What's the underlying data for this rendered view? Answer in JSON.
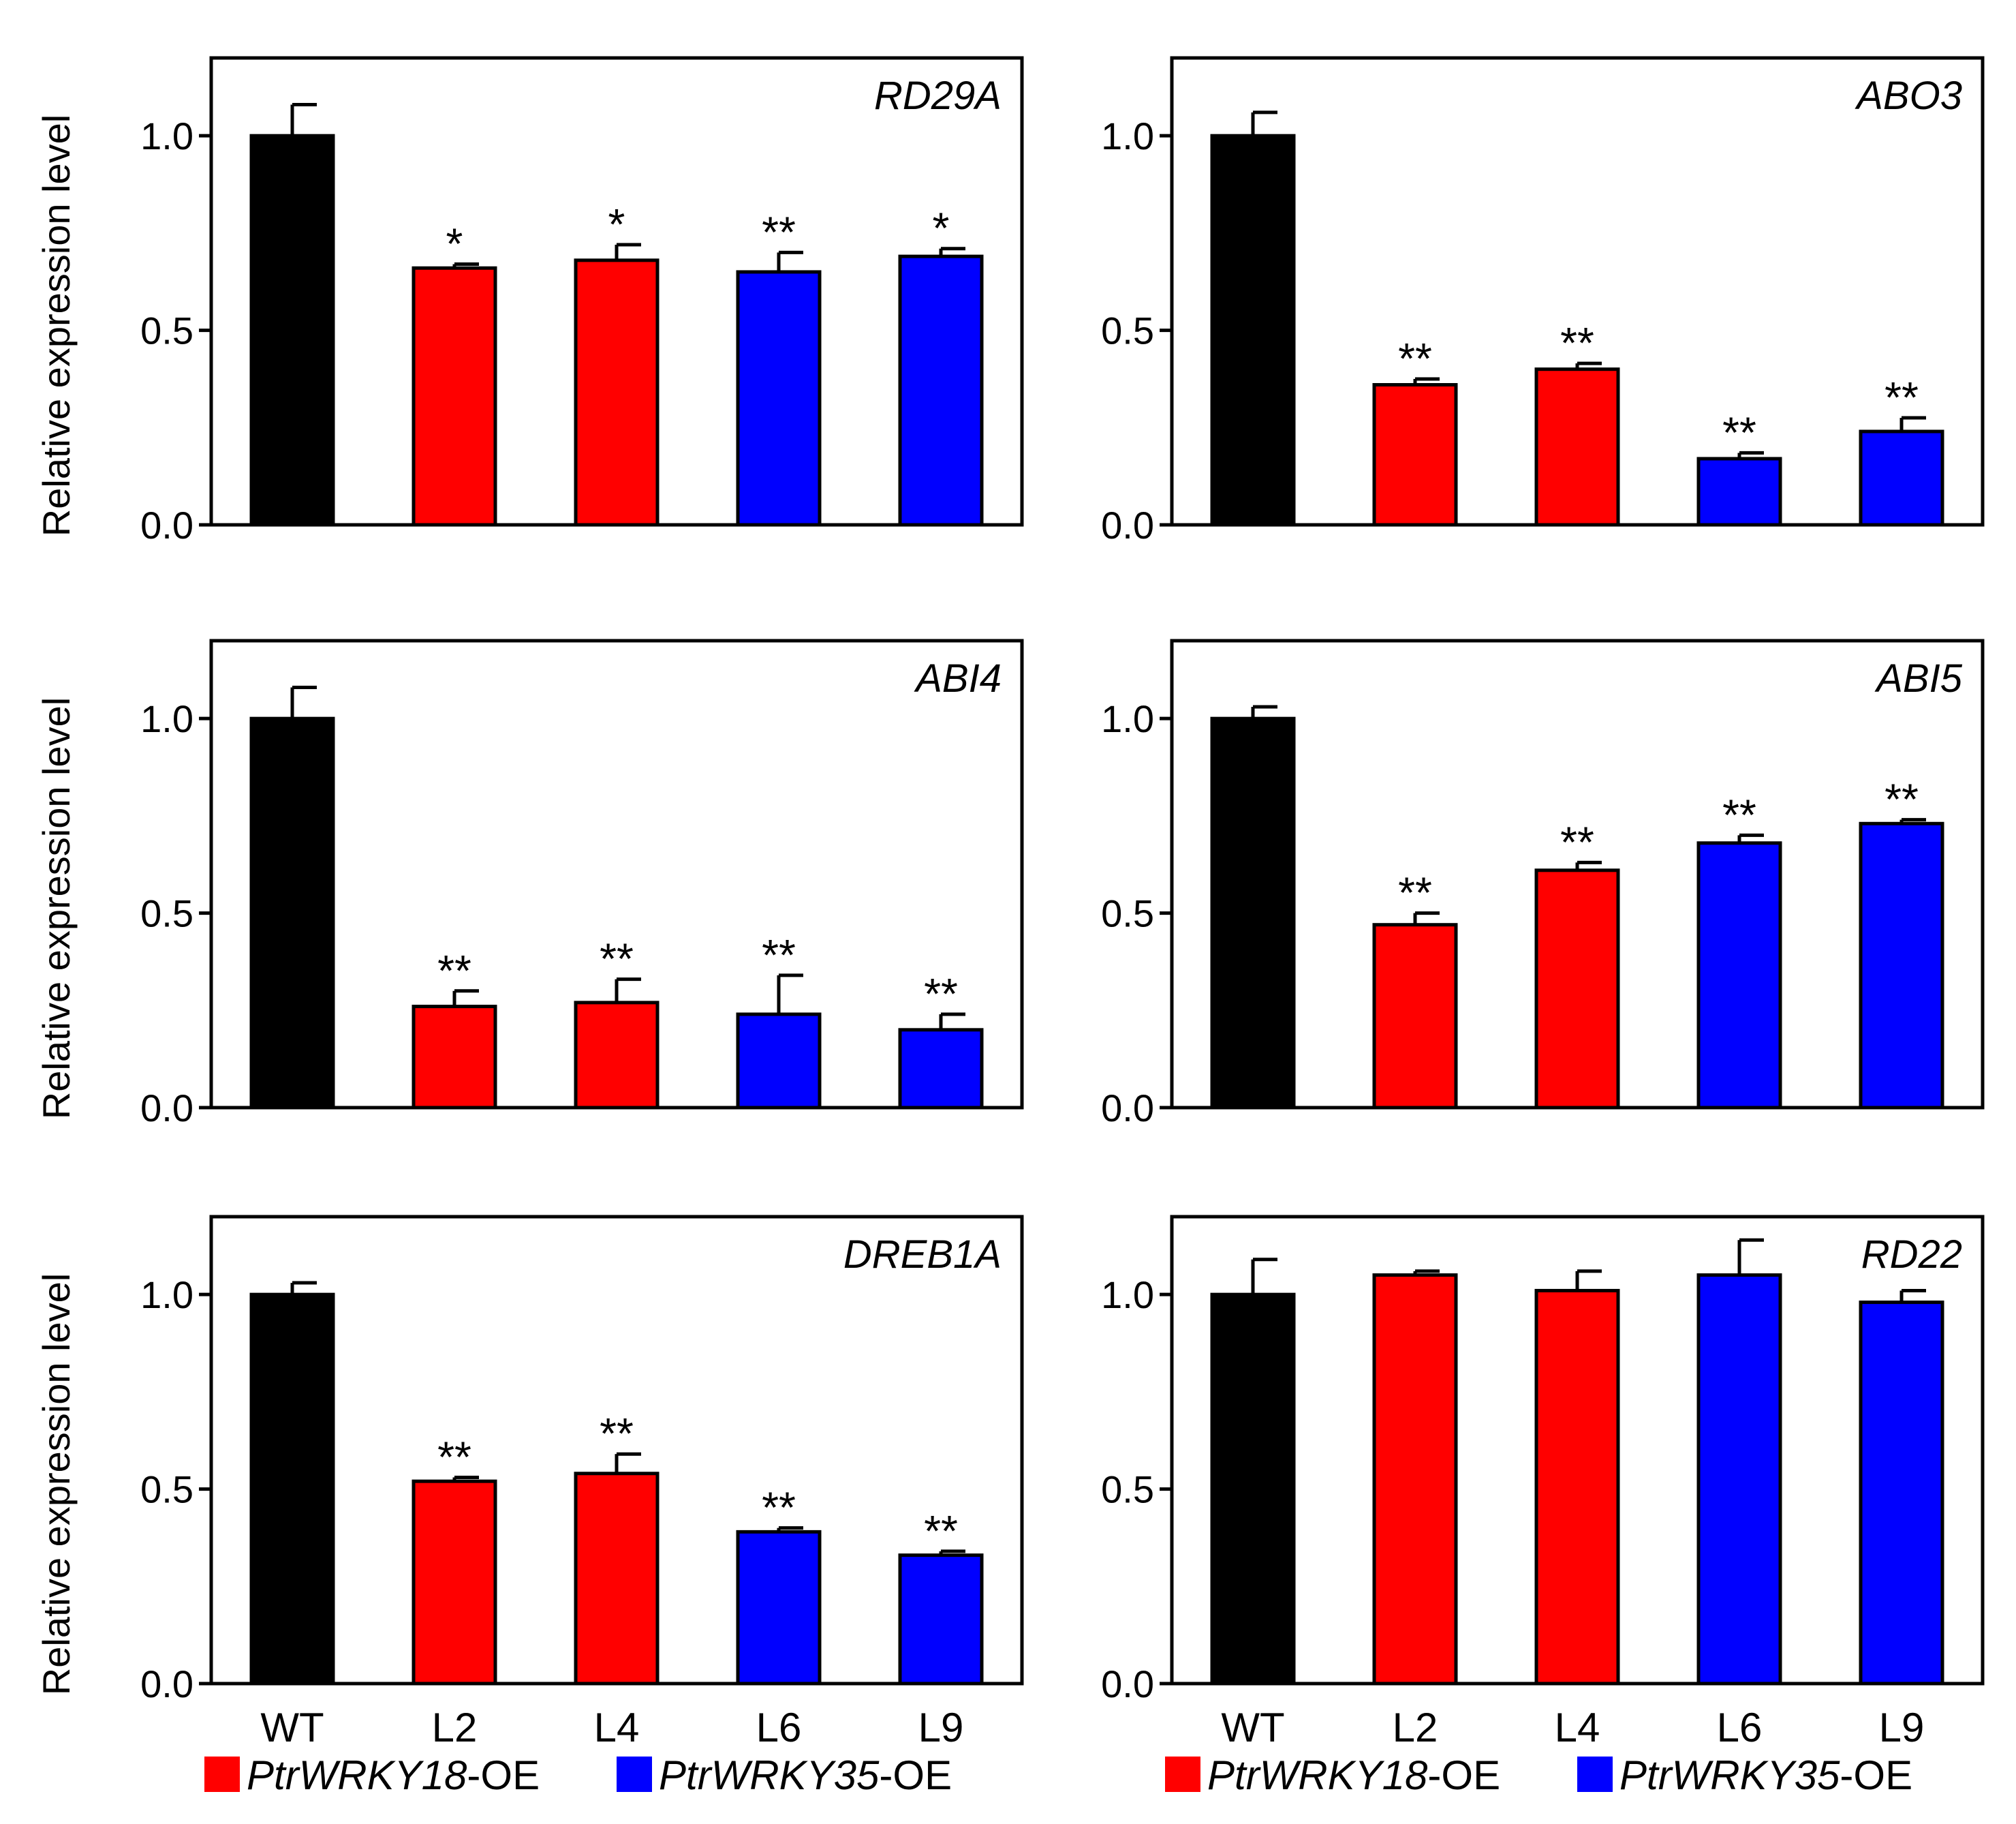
{
  "y_axis_label": "Relative expression level",
  "categories": [
    "WT",
    "L2",
    "L4",
    "L6",
    "L9"
  ],
  "legend": [
    {
      "gene": "PtrWRKY18",
      "suffix": "-OE",
      "color": "#ff0000"
    },
    {
      "gene": "PtrWRKY35",
      "suffix": "-OE",
      "color": "#0000ff"
    }
  ],
  "colors": {
    "WT": "#000000",
    "PtrWRKY18-OE": "#ff0000",
    "PtrWRKY35-OE": "#0000ff"
  },
  "chart_data": [
    {
      "type": "bar",
      "title": "RD29A",
      "ylabel": "Relative expression level",
      "ylim": [
        0,
        1.2
      ],
      "yticks": [
        "0.0",
        "0.5",
        "1.0"
      ],
      "categories": [
        "WT",
        "L2",
        "L4",
        "L6",
        "L9"
      ],
      "values": [
        1.0,
        0.66,
        0.68,
        0.65,
        0.69
      ],
      "errors": [
        0.08,
        0.01,
        0.04,
        0.05,
        0.02
      ],
      "significance": [
        "",
        "*",
        "*",
        "**",
        "*"
      ]
    },
    {
      "type": "bar",
      "title": "ABO3",
      "ylabel": "",
      "ylim": [
        0,
        1.2
      ],
      "yticks": [
        "0.0",
        "0.5",
        "1.0"
      ],
      "categories": [
        "WT",
        "L2",
        "L4",
        "L6",
        "L9"
      ],
      "values": [
        1.0,
        0.36,
        0.4,
        0.17,
        0.24
      ],
      "errors": [
        0.06,
        0.015,
        0.015,
        0.015,
        0.035
      ],
      "significance": [
        "",
        "**",
        "**",
        "**",
        "**"
      ]
    },
    {
      "type": "bar",
      "title": "ABI4",
      "ylabel": "Relative expression level",
      "ylim": [
        0,
        1.2
      ],
      "yticks": [
        "0.0",
        "0.5",
        "1.0"
      ],
      "categories": [
        "WT",
        "L2",
        "L4",
        "L6",
        "L9"
      ],
      "values": [
        1.0,
        0.26,
        0.27,
        0.24,
        0.2
      ],
      "errors": [
        0.08,
        0.04,
        0.06,
        0.1,
        0.04
      ],
      "significance": [
        "",
        "**",
        "**",
        "**",
        "**"
      ]
    },
    {
      "type": "bar",
      "title": "ABI5",
      "ylabel": "",
      "ylim": [
        0,
        1.2
      ],
      "yticks": [
        "0.0",
        "0.5",
        "1.0"
      ],
      "categories": [
        "WT",
        "L2",
        "L4",
        "L6",
        "L9"
      ],
      "values": [
        1.0,
        0.47,
        0.61,
        0.68,
        0.73
      ],
      "errors": [
        0.03,
        0.03,
        0.02,
        0.02,
        0.01
      ],
      "significance": [
        "",
        "**",
        "**",
        "**",
        "**"
      ]
    },
    {
      "type": "bar",
      "title": "DREB1A",
      "ylabel": "Relative expression level",
      "ylim": [
        0,
        1.2
      ],
      "yticks": [
        "0.0",
        "0.5",
        "1.0"
      ],
      "categories": [
        "WT",
        "L2",
        "L4",
        "L6",
        "L9"
      ],
      "values": [
        1.0,
        0.52,
        0.54,
        0.39,
        0.33
      ],
      "errors": [
        0.03,
        0.01,
        0.05,
        0.01,
        0.01
      ],
      "significance": [
        "",
        "**",
        "**",
        "**",
        "**"
      ]
    },
    {
      "type": "bar",
      "title": "RD22",
      "ylabel": "",
      "ylim": [
        0,
        1.2
      ],
      "yticks": [
        "0.0",
        "0.5",
        "1.0"
      ],
      "categories": [
        "WT",
        "L2",
        "L4",
        "L6",
        "L9"
      ],
      "values": [
        1.0,
        1.05,
        1.01,
        1.05,
        0.98
      ],
      "errors": [
        0.09,
        0.01,
        0.05,
        0.09,
        0.03
      ],
      "significance": [
        "",
        "",
        "",
        "",
        ""
      ]
    }
  ]
}
